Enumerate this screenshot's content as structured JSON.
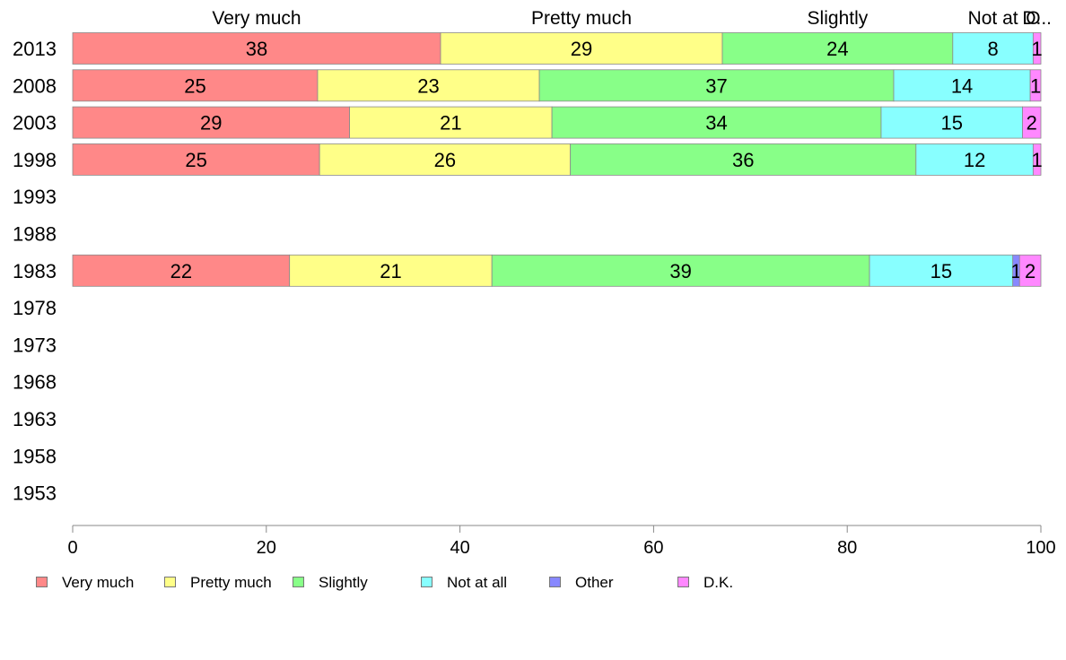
{
  "chart_data": {
    "type": "bar",
    "orientation": "horizontal",
    "stacked": true,
    "categories": [
      "2013",
      "2008",
      "2003",
      "1998",
      "1993",
      "1988",
      "1983",
      "1978",
      "1973",
      "1968",
      "1963",
      "1958",
      "1953"
    ],
    "series": [
      {
        "name": "Very much",
        "color": "#FF8888",
        "values": [
          38,
          25.3,
          28.6,
          25.5,
          null,
          null,
          22.4,
          null,
          null,
          null,
          null,
          null,
          null
        ],
        "labels": [
          "38",
          "25",
          "29",
          "25",
          "",
          "",
          "22",
          "",
          "",
          "",
          "",
          "",
          ""
        ]
      },
      {
        "name": "Pretty much",
        "color": "#FFFF88",
        "values": [
          29.1,
          22.9,
          20.9,
          25.9,
          null,
          null,
          20.9,
          null,
          null,
          null,
          null,
          null,
          null
        ],
        "labels": [
          "29",
          "23",
          "21",
          "26",
          "",
          "",
          "21",
          "",
          "",
          "",
          "",
          "",
          ""
        ]
      },
      {
        "name": "Slightly",
        "color": "#88FF88",
        "values": [
          23.8,
          36.6,
          34,
          35.7,
          null,
          null,
          39,
          null,
          null,
          null,
          null,
          null,
          null
        ],
        "labels": [
          "24",
          "37",
          "34",
          "36",
          "",
          "",
          "39",
          "",
          "",
          "",
          "",
          "",
          ""
        ]
      },
      {
        "name": "Not at all",
        "color": "#88FFFF",
        "values": [
          8.3,
          14.1,
          14.6,
          12.1,
          null,
          null,
          14.8,
          null,
          null,
          null,
          null,
          null,
          null
        ],
        "labels": [
          "8",
          "14",
          "15",
          "12",
          "",
          "",
          "15",
          "",
          "",
          "",
          "",
          "",
          ""
        ]
      },
      {
        "name": "Other",
        "color": "#8888FF",
        "values": [
          0,
          0,
          0,
          0,
          null,
          null,
          0.7,
          null,
          null,
          null,
          null,
          null,
          null
        ],
        "labels": [
          "",
          "",
          "",
          "",
          "",
          "",
          "1",
          "",
          "",
          "",
          "",
          "",
          ""
        ]
      },
      {
        "name": "D.K.",
        "color": "#FF88FF",
        "values": [
          0.8,
          1.1,
          1.9,
          0.8,
          null,
          null,
          2.2,
          null,
          null,
          null,
          null,
          null,
          null
        ],
        "labels": [
          "1",
          "1",
          "2",
          "1",
          "",
          "",
          "2",
          "",
          "",
          "",
          "",
          "",
          ""
        ]
      }
    ],
    "top_labels": [
      "Very much",
      "Pretty much",
      "Slightly",
      "Not at",
      "O",
      "D..."
    ],
    "xlim": [
      0,
      100
    ],
    "xticks": [
      "0",
      "20",
      "40",
      "60",
      "80",
      "100"
    ],
    "grid": false,
    "legend_position": "bottom"
  }
}
